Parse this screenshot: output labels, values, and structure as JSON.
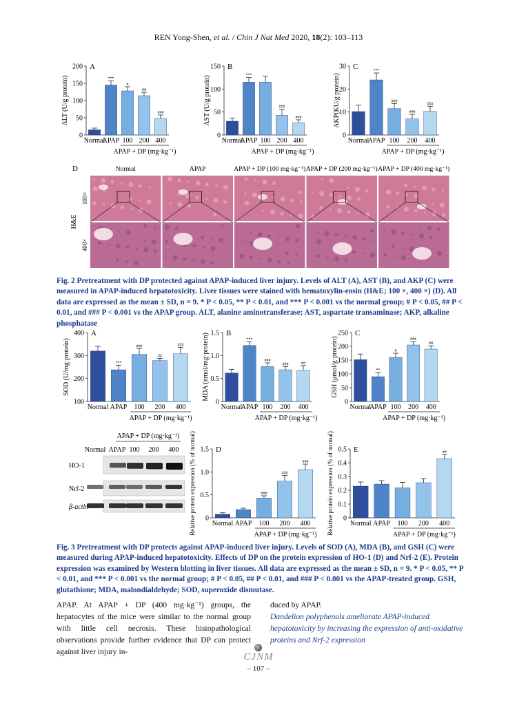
{
  "header": {
    "authors": "REN Yong-Shen,",
    "etal": "et al.",
    "journal": "Chin J Nat Med",
    "year_vol": "2020,",
    "volume": "18",
    "issue_pages": "(2): 103–113"
  },
  "fig2": {
    "charts": [
      {
        "letter": "A",
        "ylabel": "ALT (U/g protein)",
        "ymax": 200,
        "ticks": [
          0,
          50,
          100,
          150,
          200
        ],
        "categories": [
          "Normal",
          "APAP",
          "100",
          "200",
          "400"
        ],
        "values": [
          15,
          145,
          128,
          114,
          48
        ],
        "errors": [
          5,
          12,
          12,
          10,
          10
        ],
        "sig": [
          "",
          "***",
          "#",
          "##",
          "###"
        ]
      },
      {
        "letter": "B",
        "ylabel": "AST (U/g protein)",
        "ymax": 150,
        "ticks": [
          0,
          50,
          100,
          150
        ],
        "categories": [
          "Normal",
          "APAP",
          "100",
          "200",
          "400"
        ],
        "values": [
          30,
          115,
          115,
          43,
          27
        ],
        "errors": [
          7,
          10,
          13,
          13,
          6
        ],
        "sig": [
          "",
          "***",
          "",
          "###",
          "###"
        ]
      },
      {
        "letter": "C",
        "ylabel": "AKP(KU/g protein)",
        "ymax": 30,
        "ticks": [
          0,
          10,
          20,
          30
        ],
        "categories": [
          "Normal",
          "APAP",
          "100",
          "200",
          "400"
        ],
        "values": [
          10.2,
          24,
          11.5,
          7,
          10.3
        ],
        "errors": [
          2.8,
          3,
          2.2,
          2,
          2.2
        ],
        "sig": [
          "",
          "***",
          "###",
          "###",
          "###"
        ]
      }
    ],
    "group_label": "APAP + DP (mg·kg⁻¹)",
    "panelD": {
      "letter": "D",
      "columns": [
        "Normal",
        "APAP",
        "APAP + DP (100 mg·kg⁻¹)",
        "APAP + DP (200 mg·kg⁻¹)",
        "APAP + DP (400 mg·kg⁻¹)"
      ],
      "rows": [
        "100×",
        "400×"
      ],
      "stain": "H&E"
    },
    "caption": "Fig. 2    Pretreatment with DP protected against APAP-induced liver injury. Levels of ALT (A), AST (B), and AKP (C) were measured in APAP-induced hepatotoxicity. Liver tissues were stained with hematoxylin-eosin (H&E; 100 ×, 400 ×) (D). All data are expressed as the mean ± SD, n = 9. * P < 0.05, ** P < 0.01, and *** P < 0.001 vs the normal group; # P < 0.05, ## P < 0.01, and ### P < 0.001 vs the APAP group. ALT, alanine aminotransferase; AST, aspartate transaminase; AKP, alkaline phosphatase"
  },
  "fig3": {
    "charts": [
      {
        "letter": "A",
        "ylabel": "SOD (U/mg·protein)",
        "ymin": 100,
        "ymax": 400,
        "ticks": [
          100,
          200,
          300,
          400
        ],
        "categories": [
          "Normal",
          "APAP",
          "100",
          "200",
          "400"
        ],
        "values": [
          320,
          238,
          305,
          278,
          308
        ],
        "errors": [
          20,
          20,
          25,
          10,
          28
        ],
        "sig": [
          "",
          "***",
          "###",
          "##",
          "###"
        ]
      },
      {
        "letter": "B",
        "ylabel": "MDA (nmol/mg·protein)",
        "ymin": 0,
        "ymax": 1.5,
        "ticks": [
          0,
          0.5,
          1.0,
          1.5
        ],
        "categories": [
          "Normal",
          "APAP",
          "100",
          "200",
          "400"
        ],
        "values": [
          0.62,
          1.22,
          0.76,
          0.69,
          0.68
        ],
        "errors": [
          0.08,
          0.08,
          0.08,
          0.07,
          0.1
        ],
        "sig": [
          "",
          "***",
          "###",
          "###",
          "##"
        ]
      },
      {
        "letter": "C",
        "ylabel": "GSH (μmol/g·protein)",
        "ymin": 0,
        "ymax": 250,
        "ticks": [
          0,
          50,
          100,
          150,
          200,
          250
        ],
        "categories": [
          "Normal",
          "APAP",
          "100",
          "200",
          "400"
        ],
        "values": [
          152,
          90,
          160,
          205,
          190
        ],
        "errors": [
          20,
          15,
          15,
          12,
          12
        ],
        "sig": [
          "",
          "**",
          "#",
          "###",
          "##"
        ]
      },
      {
        "letter": "D",
        "ylabel": "Relative protein expression (% of normal)",
        "ymin": 0,
        "ymax": 1.5,
        "ticks": [
          0,
          0.5,
          1.0,
          1.5
        ],
        "categories": [
          "Normal",
          "APAP",
          "100",
          "200",
          "400"
        ],
        "values": [
          0.08,
          0.18,
          0.43,
          0.8,
          1.05
        ],
        "errors": [
          0.03,
          0.03,
          0.05,
          0.12,
          0.12
        ],
        "sig": [
          "",
          "",
          "###",
          "###",
          "###"
        ]
      },
      {
        "letter": "E",
        "ylabel": "Relative protein expression (% of normal)",
        "ymin": 0,
        "ymax": 0.5,
        "ticks": [
          0,
          0.1,
          0.2,
          0.3,
          0.4,
          0.5
        ],
        "categories": [
          "Normal",
          "APAP",
          "100",
          "200",
          "400"
        ],
        "values": [
          0.23,
          0.245,
          0.218,
          0.255,
          0.43
        ],
        "errors": [
          0.03,
          0.025,
          0.04,
          0.03,
          0.03
        ],
        "sig": [
          "",
          "",
          "",
          "",
          "##"
        ]
      }
    ],
    "group_label": "APAP + DP (mg·kg⁻¹)",
    "blot": {
      "header": "APAP + DP (mg·kg⁻¹)",
      "lanes": [
        "Normal",
        "APAP",
        "100",
        "200",
        "400"
      ],
      "proteins": [
        "HO-1",
        "Nrf-2",
        "β-actin"
      ]
    },
    "caption": "Fig. 3    Pretreatment with DP protects against APAP-induced liver injury. Levels of SOD (A), MDA (B), and GSH (C) were measured during APAP-induced hepatotoxicity. Effects of DP on the protein expression of HO-1 (D) and Nrf-2 (E). Protein expression was examined by Western blotting in liver tissues. All data are expressed as the mean ± SD, n = 9. * P < 0.05, ** P < 0.01, and *** P < 0.001 vs the normal group; # P < 0.05, ## P < 0.01, and ### P < 0.001 vs the APAP-treated group. GSH, glutathione; MDA, malondialdehyde; SOD, superoxide dismutase."
  },
  "body": {
    "left": "APAP. At APAP + DP (400 mg·kg⁻¹) groups, the hepatocytes of the mice were similar to the normal group with little cell necrosis. These histopathological observations provide further evidence that DP can protect against liver injury in-",
    "right_line": "duced by APAP.",
    "right_heading": "Dandelion polyphenols ameliorate APAP-induced hepatotoxicity by increasing the expression of anti-oxidative proteins and Nrf-2 expression"
  },
  "footer": {
    "logo": "CJNM",
    "page": "– 107 –"
  },
  "colors": {
    "normal": "#2f4f9c",
    "apap": "#4f84c9",
    "d100": "#77aee0",
    "d200": "#93c3ea",
    "d400": "#b3d8ef",
    "caption": "#1a3a8c"
  }
}
